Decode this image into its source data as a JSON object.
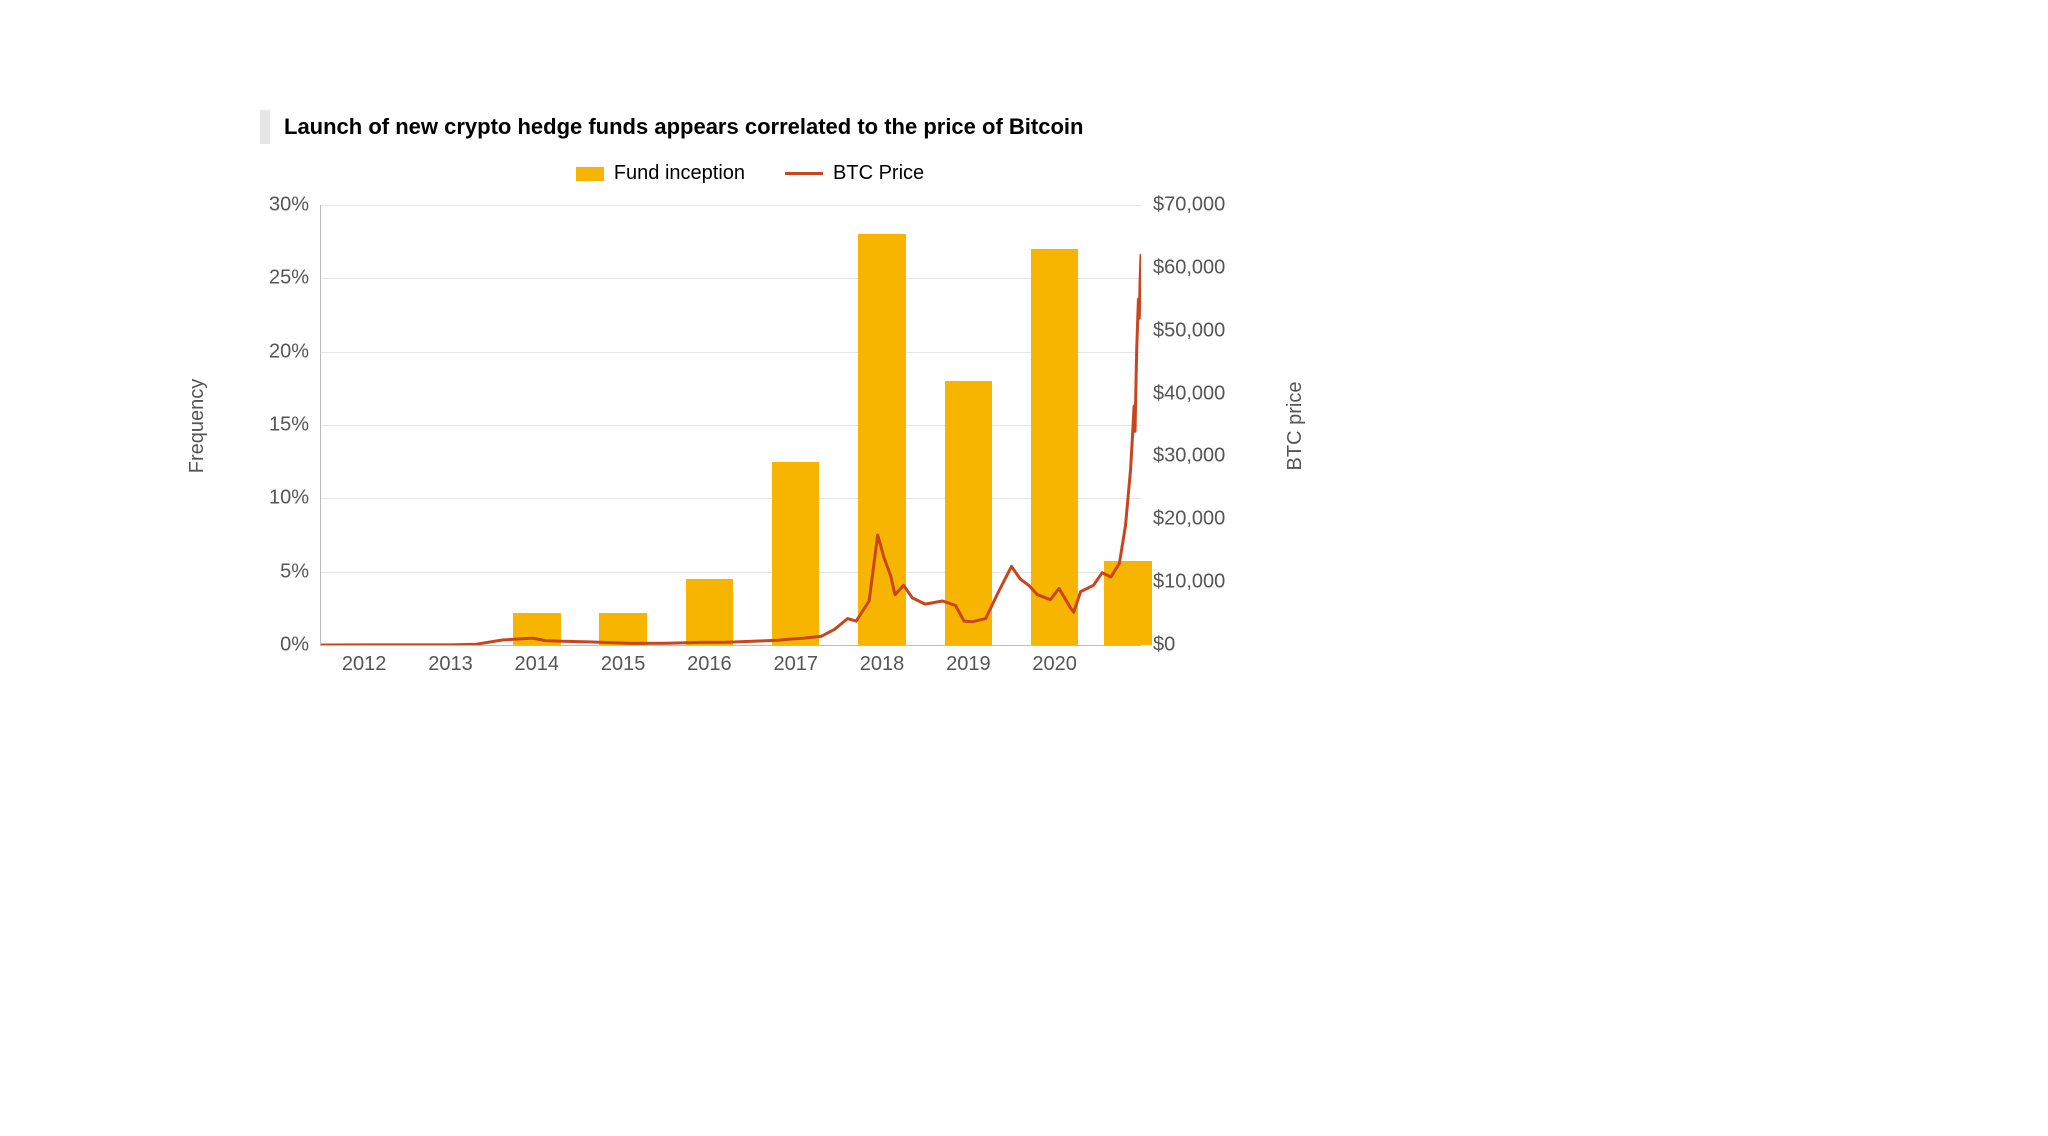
{
  "chart": {
    "type": "bar+line",
    "title": "Launch of new crypto hedge funds appears correlated to the price of Bitcoin",
    "title_fontsize": 22,
    "title_bar_color": "#e6e6e6",
    "background_color": "#ffffff",
    "grid_color": "#e6e6e6",
    "axis_color": "#bbbbbb",
    "tick_font_color": "#555555",
    "tick_fontsize": 20,
    "legend": {
      "items": [
        {
          "label": "Fund inception",
          "swatch": "bar",
          "color": "#f8b500"
        },
        {
          "label": "BTC Price",
          "swatch": "line",
          "color": "#c8461e"
        }
      ],
      "fontsize": 20
    },
    "left_axis": {
      "label": "Frequency",
      "min": 0,
      "max": 30,
      "ticks": [
        0,
        5,
        10,
        15,
        20,
        25,
        30
      ],
      "tick_labels": [
        "0%",
        "5%",
        "10%",
        "15%",
        "20%",
        "25%",
        "30%"
      ]
    },
    "right_axis": {
      "label": "BTC price",
      "min": 0,
      "max": 70000,
      "ticks": [
        0,
        10000,
        20000,
        30000,
        40000,
        50000,
        60000,
        70000
      ],
      "tick_labels": [
        "$0",
        "$10,000",
        "$20,000",
        "$30,000",
        "$40,000",
        "$50,000",
        "$60,000",
        "$70,000"
      ]
    },
    "x_axis": {
      "labels": [
        "2012",
        "2013",
        "2014",
        "2015",
        "2016",
        "2017",
        "2018",
        "2019",
        "2020"
      ],
      "min": 2011.5,
      "max": 2021.0
    },
    "bars": {
      "color": "#f8b500",
      "width_years": 0.55,
      "series": [
        {
          "x": 2012,
          "pct": 0
        },
        {
          "x": 2013,
          "pct": 0
        },
        {
          "x": 2014,
          "pct": 2.2
        },
        {
          "x": 2015,
          "pct": 2.2
        },
        {
          "x": 2016,
          "pct": 4.5
        },
        {
          "x": 2017,
          "pct": 12.5
        },
        {
          "x": 2018,
          "pct": 28
        },
        {
          "x": 2019,
          "pct": 18
        },
        {
          "x": 2020,
          "pct": 27
        },
        {
          "x": 2020.85,
          "pct": 5.7
        }
      ]
    },
    "btc_line": {
      "color": "#c8461e",
      "width": 3,
      "points": [
        [
          2011.5,
          5
        ],
        [
          2012.0,
          10
        ],
        [
          2012.5,
          8
        ],
        [
          2013.0,
          15
        ],
        [
          2013.3,
          120
        ],
        [
          2013.6,
          800
        ],
        [
          2013.95,
          1100
        ],
        [
          2014.1,
          700
        ],
        [
          2014.3,
          600
        ],
        [
          2014.6,
          500
        ],
        [
          2014.9,
          350
        ],
        [
          2015.1,
          250
        ],
        [
          2015.5,
          280
        ],
        [
          2015.9,
          420
        ],
        [
          2016.2,
          440
        ],
        [
          2016.5,
          600
        ],
        [
          2016.8,
          750
        ],
        [
          2016.95,
          950
        ],
        [
          2017.1,
          1100
        ],
        [
          2017.3,
          1400
        ],
        [
          2017.45,
          2500
        ],
        [
          2017.6,
          4200
        ],
        [
          2017.7,
          3800
        ],
        [
          2017.85,
          7000
        ],
        [
          2017.95,
          17500
        ],
        [
          2018.02,
          14000
        ],
        [
          2018.1,
          11000
        ],
        [
          2018.15,
          8000
        ],
        [
          2018.25,
          9500
        ],
        [
          2018.35,
          7500
        ],
        [
          2018.5,
          6500
        ],
        [
          2018.7,
          7000
        ],
        [
          2018.85,
          6300
        ],
        [
          2018.95,
          3800
        ],
        [
          2019.05,
          3700
        ],
        [
          2019.2,
          4200
        ],
        [
          2019.35,
          8500
        ],
        [
          2019.5,
          12500
        ],
        [
          2019.6,
          10500
        ],
        [
          2019.7,
          9500
        ],
        [
          2019.8,
          8000
        ],
        [
          2019.95,
          7200
        ],
        [
          2020.05,
          9000
        ],
        [
          2020.18,
          6000
        ],
        [
          2020.22,
          5200
        ],
        [
          2020.3,
          8500
        ],
        [
          2020.45,
          9500
        ],
        [
          2020.55,
          11500
        ],
        [
          2020.65,
          10800
        ],
        [
          2020.75,
          13000
        ],
        [
          2020.82,
          19000
        ],
        [
          2020.88,
          28000
        ],
        [
          2020.9,
          33000
        ],
        [
          2020.92,
          38000
        ],
        [
          2020.93,
          34000
        ],
        [
          2020.95,
          47000
        ],
        [
          2020.97,
          55000
        ],
        [
          2020.98,
          52000
        ],
        [
          2020.99,
          58000
        ],
        [
          2021.0,
          62000
        ]
      ]
    }
  }
}
